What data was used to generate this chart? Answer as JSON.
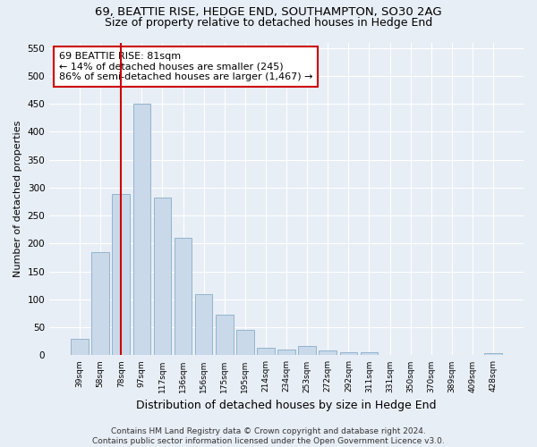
{
  "title1": "69, BEATTIE RISE, HEDGE END, SOUTHAMPTON, SO30 2AG",
  "title2": "Size of property relative to detached houses in Hedge End",
  "xlabel": "Distribution of detached houses by size in Hedge End",
  "ylabel": "Number of detached properties",
  "categories": [
    "39sqm",
    "58sqm",
    "78sqm",
    "97sqm",
    "117sqm",
    "136sqm",
    "156sqm",
    "175sqm",
    "195sqm",
    "214sqm",
    "234sqm",
    "253sqm",
    "272sqm",
    "292sqm",
    "311sqm",
    "331sqm",
    "350sqm",
    "370sqm",
    "389sqm",
    "409sqm",
    "428sqm"
  ],
  "values": [
    30,
    185,
    288,
    450,
    282,
    210,
    110,
    72,
    45,
    13,
    11,
    17,
    8,
    5,
    5,
    0,
    0,
    0,
    0,
    0,
    4
  ],
  "bar_color": "#c9d9ea",
  "bar_edge_color": "#92b4cc",
  "vline_color": "#cc0000",
  "vline_x": 2,
  "annotation_text": "69 BEATTIE RISE: 81sqm\n← 14% of detached houses are smaller (245)\n86% of semi-detached houses are larger (1,467) →",
  "annotation_box_edge": "#cc0000",
  "ylim": [
    0,
    560
  ],
  "yticks": [
    0,
    50,
    100,
    150,
    200,
    250,
    300,
    350,
    400,
    450,
    500,
    550
  ],
  "bg_color": "#e8eef5",
  "plot_bg_color": "#e8eef5",
  "footer_text": "Contains HM Land Registry data © Crown copyright and database right 2024.\nContains public sector information licensed under the Open Government Licence v3.0.",
  "title1_fontsize": 9.5,
  "title2_fontsize": 9,
  "xlabel_fontsize": 9,
  "ylabel_fontsize": 8,
  "annotation_fontsize": 8,
  "footer_fontsize": 6.5,
  "grid_color": "#ffffff"
}
